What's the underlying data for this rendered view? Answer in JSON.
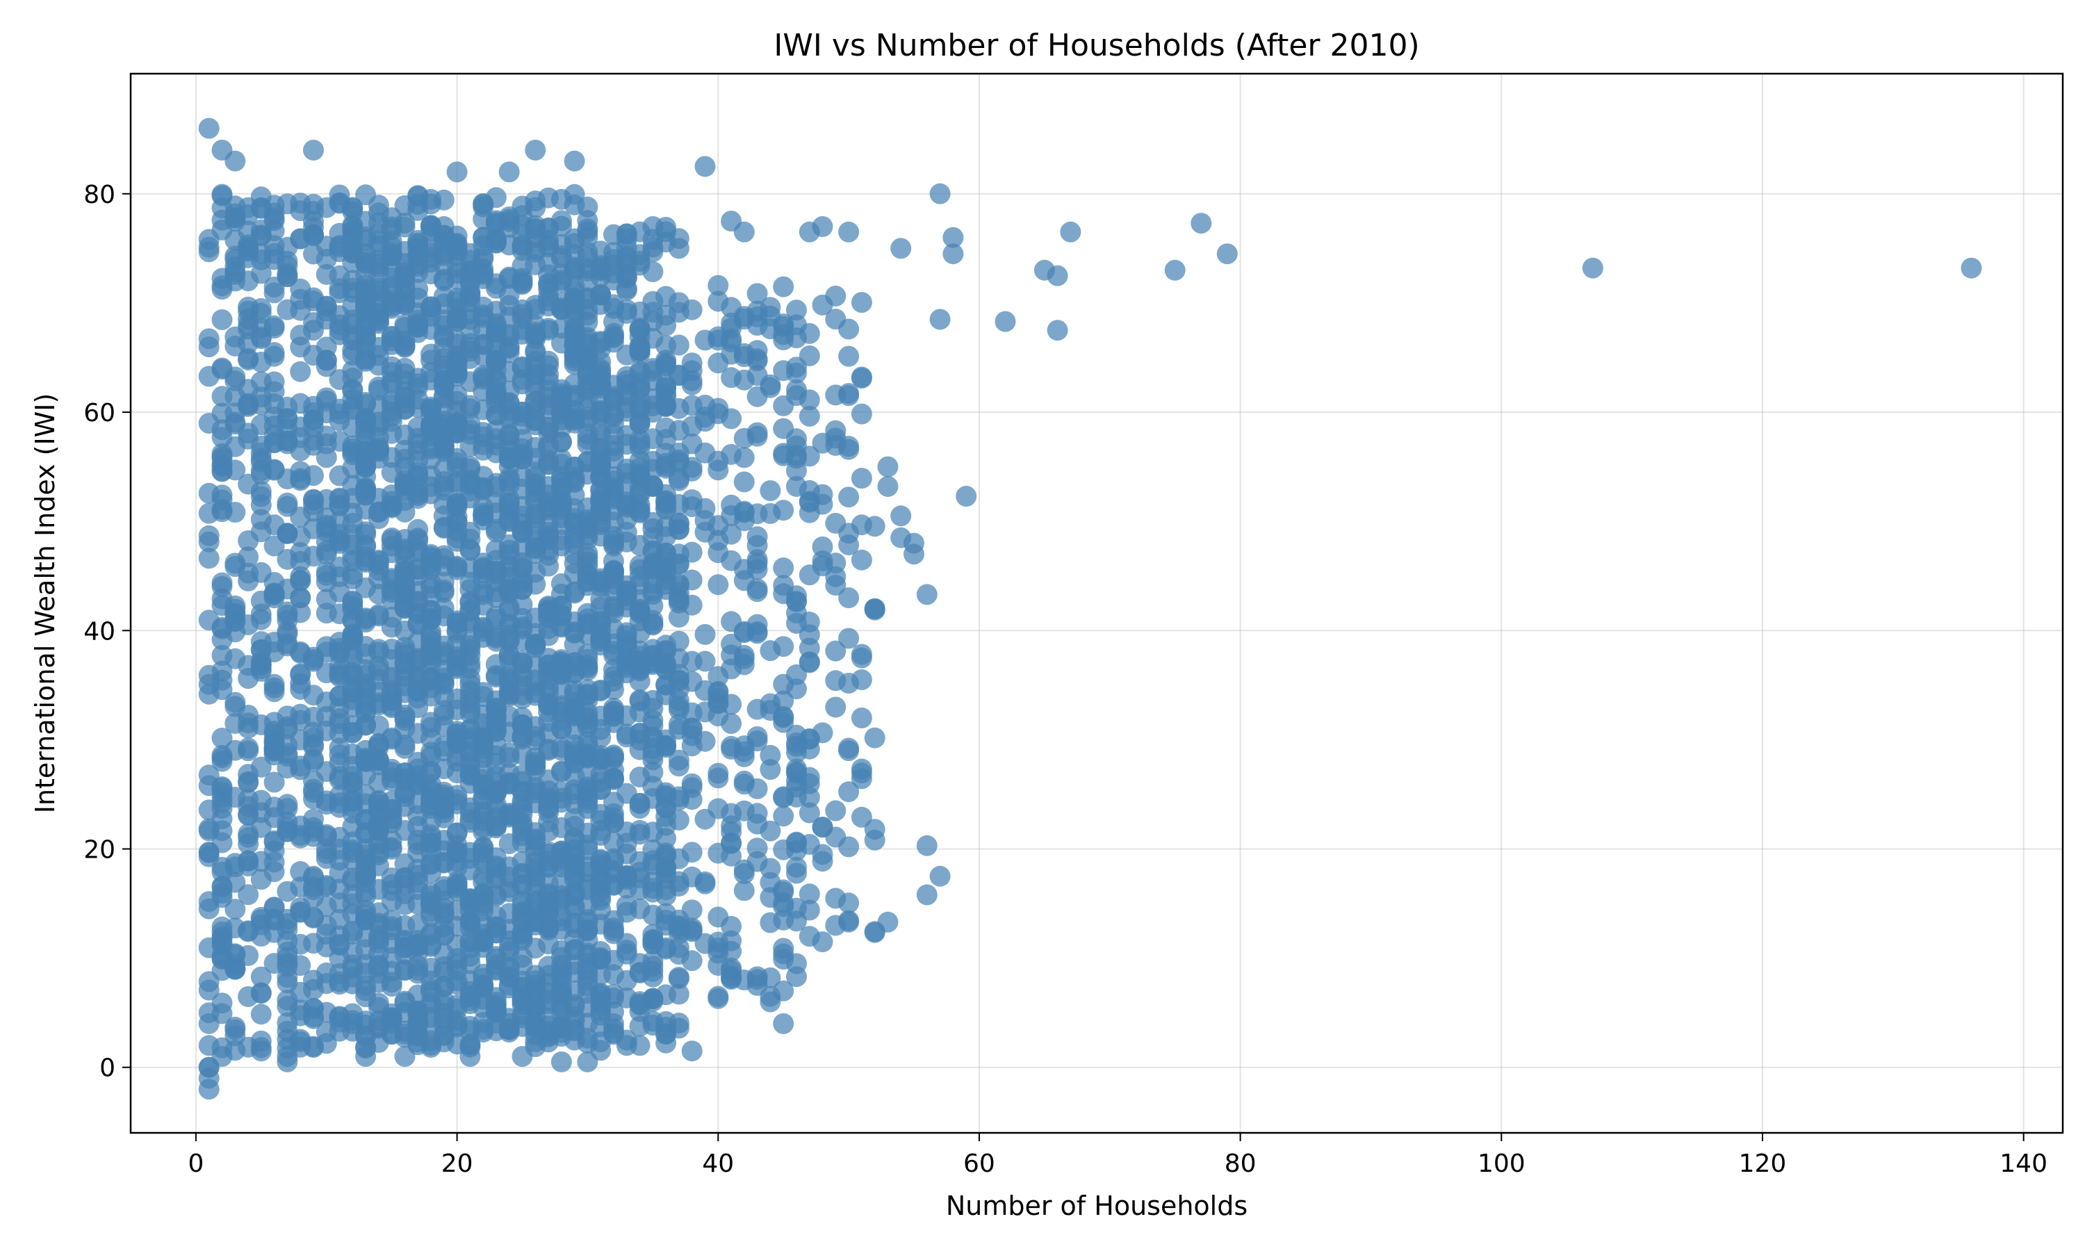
{
  "chart_data": {
    "type": "scatter",
    "title": "IWI vs Number of Households (After 2010)",
    "xlabel": "Number of Households",
    "ylabel": "International Wealth Index (IWI)",
    "xlim": [
      -5,
      143
    ],
    "ylim": [
      -6,
      91
    ],
    "xticks": [
      0,
      20,
      40,
      60,
      80,
      100,
      120,
      140
    ],
    "yticks": [
      0,
      20,
      40,
      60,
      80
    ],
    "grid": true,
    "legend": "none",
    "marker_color": "#4682b4",
    "marker_alpha": 0.7,
    "series": [
      {
        "x": [
          1,
          1,
          2,
          3,
          9,
          26,
          29,
          39,
          20,
          24,
          35,
          37,
          41,
          42,
          47,
          48,
          50,
          54,
          57,
          58,
          58,
          65,
          66,
          67,
          75,
          77,
          79,
          107,
          136,
          62,
          66,
          57,
          59,
          53,
          55,
          54,
          56,
          52,
          50,
          51,
          51,
          51,
          50,
          49,
          48,
          56,
          57,
          56,
          52,
          45,
          46,
          43,
          40,
          1,
          1,
          1,
          1,
          1,
          1,
          2,
          5,
          7,
          7,
          13,
          16,
          21,
          25,
          28,
          30,
          34,
          38,
          40,
          44,
          42,
          47,
          49,
          48,
          50,
          53,
          54,
          55,
          45,
          44,
          33,
          32,
          52,
          53
        ],
        "y": [
          86,
          0,
          84,
          83,
          84,
          84,
          83,
          82.5,
          82,
          82,
          77,
          75,
          77.5,
          76.5,
          76.5,
          77,
          76.5,
          75,
          80,
          76,
          74.5,
          73,
          72.5,
          76.5,
          73,
          77.3,
          74.5,
          73.2,
          73.2,
          68.3,
          67.5,
          68.5,
          52.3,
          53.2,
          48,
          50.5,
          43.3,
          42,
          43,
          37.5,
          35.5,
          32,
          29,
          23.5,
          22,
          20.3,
          17.5,
          15.8,
          21.8,
          4,
          9.5,
          7.5,
          6.3,
          -2,
          2,
          4,
          5,
          0,
          -1,
          1,
          1.5,
          1,
          0.5,
          1,
          1,
          1,
          1,
          0.5,
          0.5,
          2,
          1.5,
          6.5,
          6.5,
          8,
          12,
          13,
          11.5,
          13.3,
          13.3,
          48.5,
          47,
          7,
          6,
          2.5,
          4,
          42,
          55
        ]
      }
    ]
  }
}
